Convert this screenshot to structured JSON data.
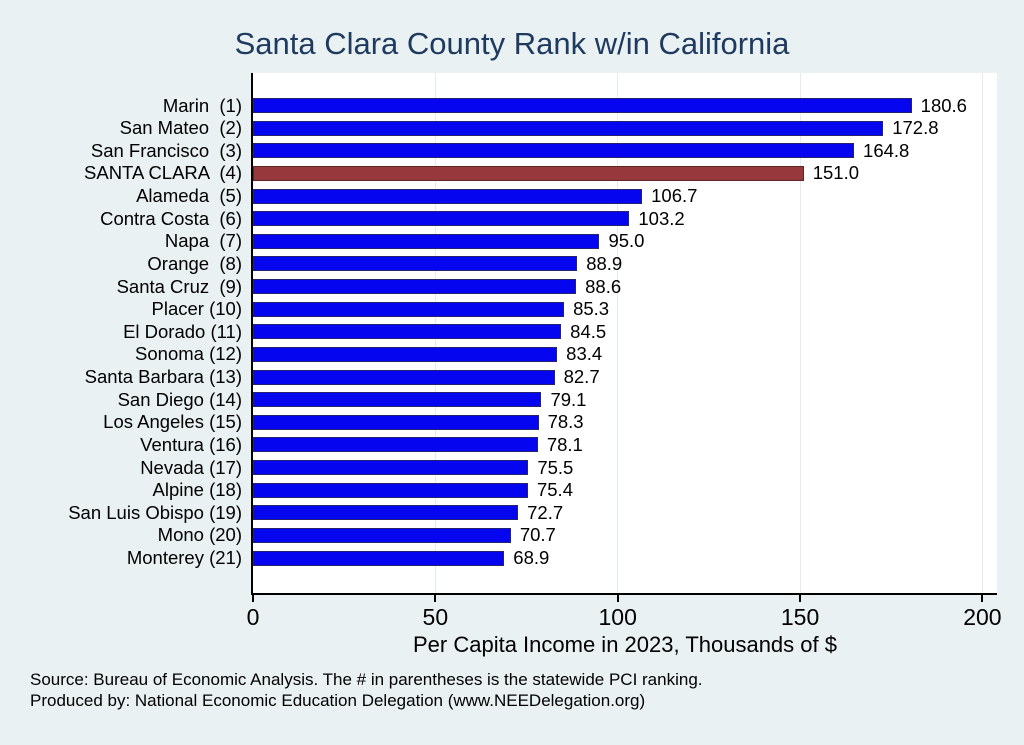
{
  "title": "Santa Clara County Rank w/in California",
  "footer": {
    "line1": "Source: Bureau of Economic Analysis. The # in parentheses is the statewide PCI ranking.",
    "line2": "Produced by: National Economic Education Delegation (www.NEEDelegation.org)"
  },
  "colors": {
    "page_background": "#e9f1f2",
    "plot_background": "#ffffff",
    "bar_fill": "#0505f0",
    "bar_outline": "#23236e",
    "highlight_fill": "#97393c",
    "highlight_outline": "#5e2426",
    "title_text": "#1e3a5f",
    "axis_line": "#000000",
    "gridline": "#e3edee",
    "label_text": "#000000"
  },
  "chart_data": {
    "type": "bar",
    "orientation": "horizontal",
    "title": "Santa Clara County Rank w/in California",
    "xlabel": "Per Capita Income in 2023, Thousands of $",
    "ylabel": "",
    "xlim": [
      0,
      204
    ],
    "xticks": [
      0,
      50,
      100,
      150,
      200
    ],
    "grid": true,
    "legend": "none",
    "highlight_index": 3,
    "categories": [
      "Marin  (1)",
      "San Mateo  (2)",
      "San Francisco  (3)",
      "SANTA CLARA  (4)",
      "Alameda  (5)",
      "Contra Costa  (6)",
      "Napa  (7)",
      "Orange  (8)",
      "Santa Cruz  (9)",
      "Placer (10)",
      "El Dorado (11)",
      "Sonoma (12)",
      "Santa Barbara (13)",
      "San Diego (14)",
      "Los Angeles (15)",
      "Ventura (16)",
      "Nevada (17)",
      "Alpine (18)",
      "San Luis Obispo (19)",
      "Mono (20)",
      "Monterey (21)"
    ],
    "values": [
      180.6,
      172.8,
      164.8,
      151.0,
      106.7,
      103.2,
      95.0,
      88.9,
      88.6,
      85.3,
      84.5,
      83.4,
      82.7,
      79.1,
      78.3,
      78.1,
      75.5,
      75.4,
      72.7,
      70.7,
      68.9
    ],
    "value_labels": [
      "180.6",
      "172.8",
      "164.8",
      "151.0",
      "106.7",
      "103.2",
      "95.0",
      "88.9",
      "88.6",
      "85.3",
      "84.5",
      "83.4",
      "82.7",
      "79.1",
      "78.3",
      "78.1",
      "75.5",
      "75.4",
      "72.7",
      "70.7",
      "68.9"
    ]
  }
}
